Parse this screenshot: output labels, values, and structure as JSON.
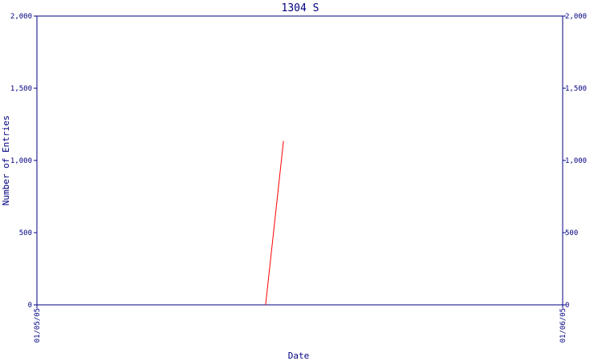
{
  "chart_data": {
    "type": "line",
    "title": "1304 S",
    "xlabel": "Date",
    "ylabel": "Number of Entries",
    "x_ticks": [
      "01/05/05",
      "01/06/05"
    ],
    "y_ticks": [
      "0",
      "500",
      "1,000",
      "1,500",
      "2,000"
    ],
    "ylim": [
      0,
      2000
    ],
    "xlim": [
      0,
      1
    ],
    "grid": false,
    "series": [
      {
        "color": "#ff0000",
        "points": [
          {
            "x": 0.435,
            "y": 0
          },
          {
            "x": 0.469,
            "y": 1135
          }
        ]
      }
    ]
  },
  "colors": {
    "axis": "#000080",
    "text": "#000080",
    "series": "#ff0000"
  }
}
